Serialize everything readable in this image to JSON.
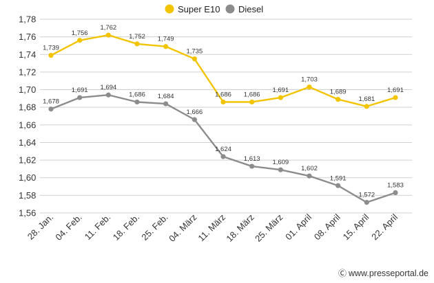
{
  "chart_data": {
    "type": "line",
    "categories": [
      "28. Jan.",
      "04. Feb.",
      "11. Feb.",
      "18. Feb.",
      "25. Feb.",
      "04. März",
      "11. März",
      "18. März",
      "25. März",
      "01. April",
      "08. April",
      "15. April",
      "22. April"
    ],
    "series": [
      {
        "name": "Super E10",
        "color": "#f2c400",
        "values": [
          1.739,
          1.756,
          1.762,
          1.752,
          1.749,
          1.735,
          1.686,
          1.686,
          1.691,
          1.703,
          1.689,
          1.681,
          1.691
        ],
        "labels": [
          "1,739",
          "1,756",
          "1,762",
          "1,752",
          "1,749",
          "1,735",
          "1,686",
          "1,686",
          "1,691",
          "1,703",
          "1,689",
          "1,681",
          "1,691"
        ]
      },
      {
        "name": "Diesel",
        "color": "#8c8c8c",
        "values": [
          1.678,
          1.691,
          1.694,
          1.686,
          1.684,
          1.666,
          1.624,
          1.613,
          1.609,
          1.602,
          1.591,
          1.572,
          1.583
        ],
        "labels": [
          "1,678",
          "1,691",
          "1,694",
          "1,686",
          "1,684",
          "1,666",
          "1,624",
          "1,613",
          "1,609",
          "1,602",
          "1,591",
          "1,572",
          "1,583"
        ]
      }
    ],
    "yticks": [
      1.56,
      1.58,
      1.6,
      1.62,
      1.64,
      1.66,
      1.68,
      1.7,
      1.72,
      1.74,
      1.76,
      1.78
    ],
    "ytick_labels": [
      "1,56",
      "1,58",
      "1,60",
      "1,62",
      "1,64",
      "1,66",
      "1,68",
      "1,70",
      "1,72",
      "1,74",
      "1,76",
      "1,78"
    ],
    "ylim": [
      1.56,
      1.78
    ],
    "title": "",
    "xlabel": "",
    "ylabel": "",
    "grid": true,
    "legend_position": "top-center"
  },
  "credit": {
    "icon": "cc-icon",
    "text": "www.presseportal.de"
  }
}
